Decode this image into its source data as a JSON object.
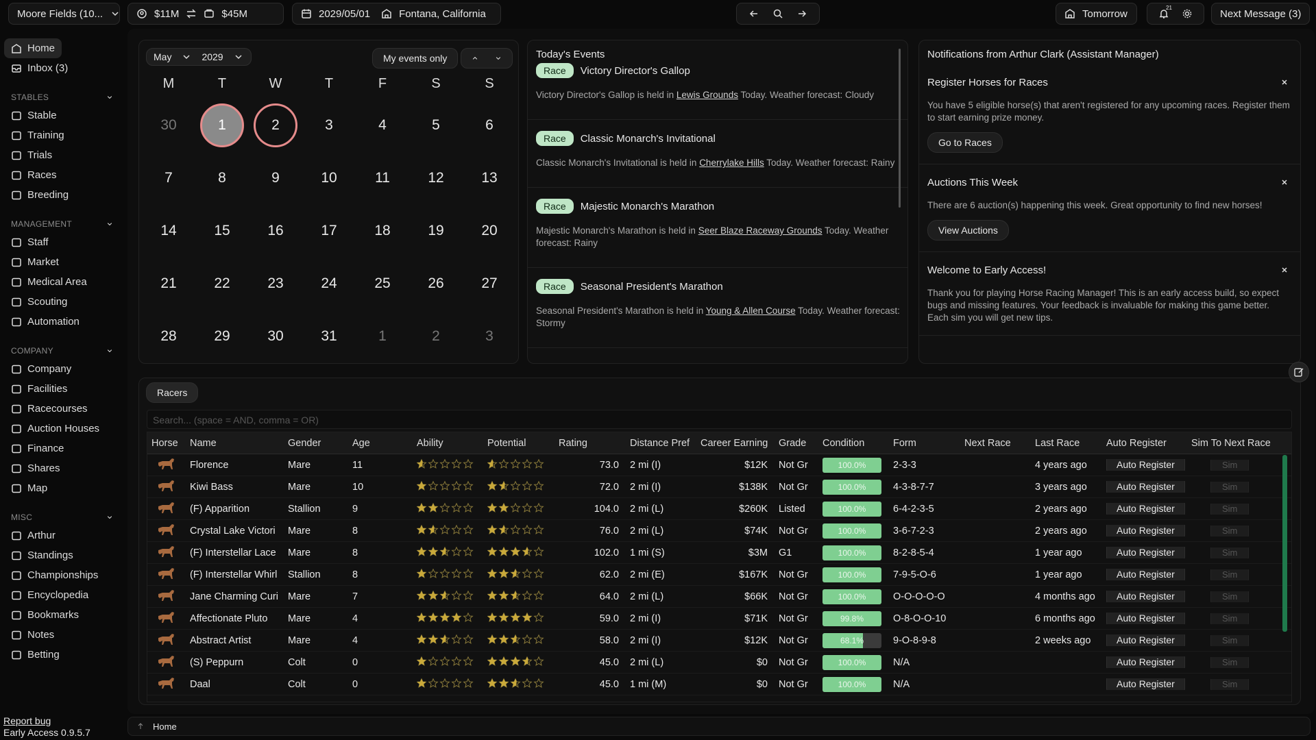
{
  "topbar": {
    "stable": "Moore Fields (10...",
    "cash": "$11M",
    "balance": "$45M",
    "date": "2029/05/01",
    "location": "Fontana, California",
    "advance": "Tomorrow",
    "notification_count": "21",
    "next_message": "Next Message (3)"
  },
  "sidebar": {
    "top": [
      "Home",
      "Inbox (3)"
    ],
    "sections": [
      {
        "title": "STABLES",
        "items": [
          "Stable",
          "Training",
          "Trials",
          "Races",
          "Breeding"
        ]
      },
      {
        "title": "MANAGEMENT",
        "items": [
          "Staff",
          "Market",
          "Medical Area",
          "Scouting",
          "Automation"
        ]
      },
      {
        "title": "COMPANY",
        "items": [
          "Company",
          "Facilities",
          "Racecourses",
          "Auction Houses",
          "Finance",
          "Shares",
          "Map"
        ]
      },
      {
        "title": "MISC",
        "items": [
          "Arthur",
          "Standings",
          "Championships",
          "Encyclopedia",
          "Bookmarks",
          "Notes",
          "Betting"
        ]
      }
    ],
    "report_bug": "Report bug",
    "version": "Early Access 0.9.5.7"
  },
  "calendar": {
    "month": "May",
    "year": "2029",
    "filter": "My events only",
    "weekdays": [
      "M",
      "T",
      "W",
      "T",
      "F",
      "S",
      "S"
    ],
    "weeks": [
      [
        {
          "day": 30,
          "other_month": true
        },
        {
          "day": 1,
          "highlight": "today"
        },
        {
          "day": 2,
          "highlight": "selected"
        },
        {
          "day": 3
        },
        {
          "day": 4
        },
        {
          "day": 5
        },
        {
          "day": 6
        }
      ],
      [
        {
          "day": 7
        },
        {
          "day": 8
        },
        {
          "day": 9
        },
        {
          "day": 10
        },
        {
          "day": 11
        },
        {
          "day": 12
        },
        {
          "day": 13
        }
      ],
      [
        {
          "day": 14
        },
        {
          "day": 15
        },
        {
          "day": 16
        },
        {
          "day": 17
        },
        {
          "day": 18
        },
        {
          "day": 19
        },
        {
          "day": 20
        }
      ],
      [
        {
          "day": 21
        },
        {
          "day": 22
        },
        {
          "day": 23
        },
        {
          "day": 24
        },
        {
          "day": 25
        },
        {
          "day": 26
        },
        {
          "day": 27
        }
      ],
      [
        {
          "day": 28
        },
        {
          "day": 29
        },
        {
          "day": 30
        },
        {
          "day": 31
        },
        {
          "day": 1,
          "other_month": true
        },
        {
          "day": 2,
          "other_month": true
        },
        {
          "day": 3,
          "other_month": true
        }
      ]
    ]
  },
  "events": {
    "title": "Today's Events",
    "items": [
      {
        "tag": "Race",
        "name": "Victory Director's Gallop",
        "before": "Victory Director's Gallop is held in ",
        "link": "Lewis Grounds",
        "after": " Today. Weather forecast: Cloudy"
      },
      {
        "tag": "Race",
        "name": "Classic Monarch's Invitational",
        "before": "Classic Monarch's Invitational is held in ",
        "link": "Cherrylake Hills",
        "after": " Today. Weather forecast: Rainy"
      },
      {
        "tag": "Race",
        "name": "Majestic Monarch's Marathon",
        "before": "Majestic Monarch's Marathon is held in ",
        "link": "Seer Blaze Raceway Grounds",
        "after": " Today. Weather forecast: Rainy"
      },
      {
        "tag": "Race",
        "name": "Seasonal President's Marathon",
        "before": "Seasonal President's Marathon is held in ",
        "link": "Young & Allen Course",
        "after": " Today. Weather forecast: Stormy"
      }
    ]
  },
  "notifications": {
    "title": "Notifications from Arthur Clark (Assistant Manager)",
    "items": [
      {
        "title": "Register Horses for Races",
        "text": "You have 5 eligible horse(s) that aren't registered for any upcoming races. Register them to start earning prize money.",
        "button": "Go to Races"
      },
      {
        "title": "Auctions This Week",
        "text": "There are 6 auction(s) happening this week. Great opportunity to find new horses!",
        "button": "View Auctions"
      },
      {
        "title": "Welcome to Early Access!",
        "text": "Thank you for playing Horse Racing Manager! This is an early access build, so expect bugs and missing features. Your feedback is invaluable for making this game better. Each sim you will get new tips."
      }
    ]
  },
  "racers": {
    "tab": "Racers",
    "search": "Search... (space = AND, comma = OR)",
    "columns": [
      "Horse",
      "Name",
      "Gender",
      "Age",
      "Ability",
      "Potential",
      "Rating",
      "Distance Pref",
      "Career Earning",
      "Grade",
      "Condition",
      "Form",
      "Next Race",
      "Last Race",
      "Auto Register",
      "Sim To Next Race"
    ],
    "auto_button": "Auto Register",
    "sim_button": "Sim",
    "rows": [
      {
        "name": "Florence",
        "gender": "Mare",
        "age": "11",
        "ability": 0.5,
        "potential": 0.5,
        "rating": "73.0",
        "distance": "2 mi (I)",
        "earning": "$12K",
        "grade": "Not Gr",
        "condition": "100.0%",
        "form": "2-3-3",
        "last_race": "4 years ago"
      },
      {
        "name": "Kiwi Bass",
        "gender": "Mare",
        "age": "10",
        "ability": 1,
        "potential": 1.5,
        "rating": "72.0",
        "distance": "2 mi (I)",
        "earning": "$138K",
        "grade": "Not Gr",
        "condition": "100.0%",
        "form": "4-3-8-7-7",
        "last_race": "3 years ago"
      },
      {
        "name": "(F) Apparition",
        "gender": "Stallion",
        "age": "9",
        "ability": 2,
        "potential": 2,
        "rating": "104.0",
        "distance": "2 mi (L)",
        "earning": "$260K",
        "grade": "Listed",
        "condition": "100.0%",
        "form": "6-4-2-3-5",
        "last_race": "2 years ago"
      },
      {
        "name": "Crystal Lake Victori",
        "gender": "Mare",
        "age": "8",
        "ability": 1.5,
        "potential": 1.5,
        "rating": "76.0",
        "distance": "2 mi (L)",
        "earning": "$74K",
        "grade": "Not Gr",
        "condition": "100.0%",
        "form": "3-6-7-2-3",
        "last_race": "2 years ago"
      },
      {
        "name": "(F) Interstellar Lace",
        "gender": "Mare",
        "age": "8",
        "ability": 2.5,
        "potential": 3.5,
        "rating": "102.0",
        "distance": "1 mi (S)",
        "earning": "$3M",
        "grade": "G1",
        "condition": "100.0%",
        "form": "8-2-8-5-4",
        "last_race": "1 year ago"
      },
      {
        "name": "(F) Interstellar Whirl",
        "gender": "Stallion",
        "age": "8",
        "ability": 1,
        "potential": 2.5,
        "rating": "62.0",
        "distance": "2 mi (E)",
        "earning": "$167K",
        "grade": "Not Gr",
        "condition": "100.0%",
        "form": "7-9-5-O-6",
        "last_race": "1 year ago"
      },
      {
        "name": "Jane Charming Curi",
        "gender": "Mare",
        "age": "7",
        "ability": 2.5,
        "potential": 2.5,
        "rating": "64.0",
        "distance": "2 mi (L)",
        "earning": "$66K",
        "grade": "Not Gr",
        "condition": "100.0%",
        "form": "O-O-O-O-O",
        "last_race": "4 months ago"
      },
      {
        "name": "Affectionate Pluto",
        "gender": "Mare",
        "age": "4",
        "ability": 4,
        "potential": 4,
        "rating": "59.0",
        "distance": "2 mi (I)",
        "earning": "$71K",
        "grade": "Not Gr",
        "condition": "99.8%",
        "form": "O-8-O-O-10",
        "last_race": "6 months ago"
      },
      {
        "name": "Abstract Artist",
        "gender": "Mare",
        "age": "4",
        "ability": 2.5,
        "potential": 2.5,
        "rating": "58.0",
        "distance": "2 mi (I)",
        "earning": "$12K",
        "grade": "Not Gr",
        "condition": "68.1%",
        "form": "9-O-8-9-8",
        "last_race": "2 weeks ago"
      },
      {
        "name": "(S) Peppurn",
        "gender": "Colt",
        "age": "0",
        "ability": 1,
        "potential": 3.5,
        "rating": "45.0",
        "distance": "2 mi (L)",
        "earning": "$0",
        "grade": "Not Gr",
        "condition": "100.0%",
        "form": "N/A",
        "last_race": null
      },
      {
        "name": "Daal",
        "gender": "Colt",
        "age": "0",
        "ability": 1,
        "potential": 2.5,
        "rating": "45.0",
        "distance": "1 mi (M)",
        "earning": "$0",
        "grade": "Not Gr",
        "condition": "100.0%",
        "form": "N/A",
        "last_race": null
      }
    ]
  },
  "footer": {
    "breadcrumb": "Home"
  }
}
